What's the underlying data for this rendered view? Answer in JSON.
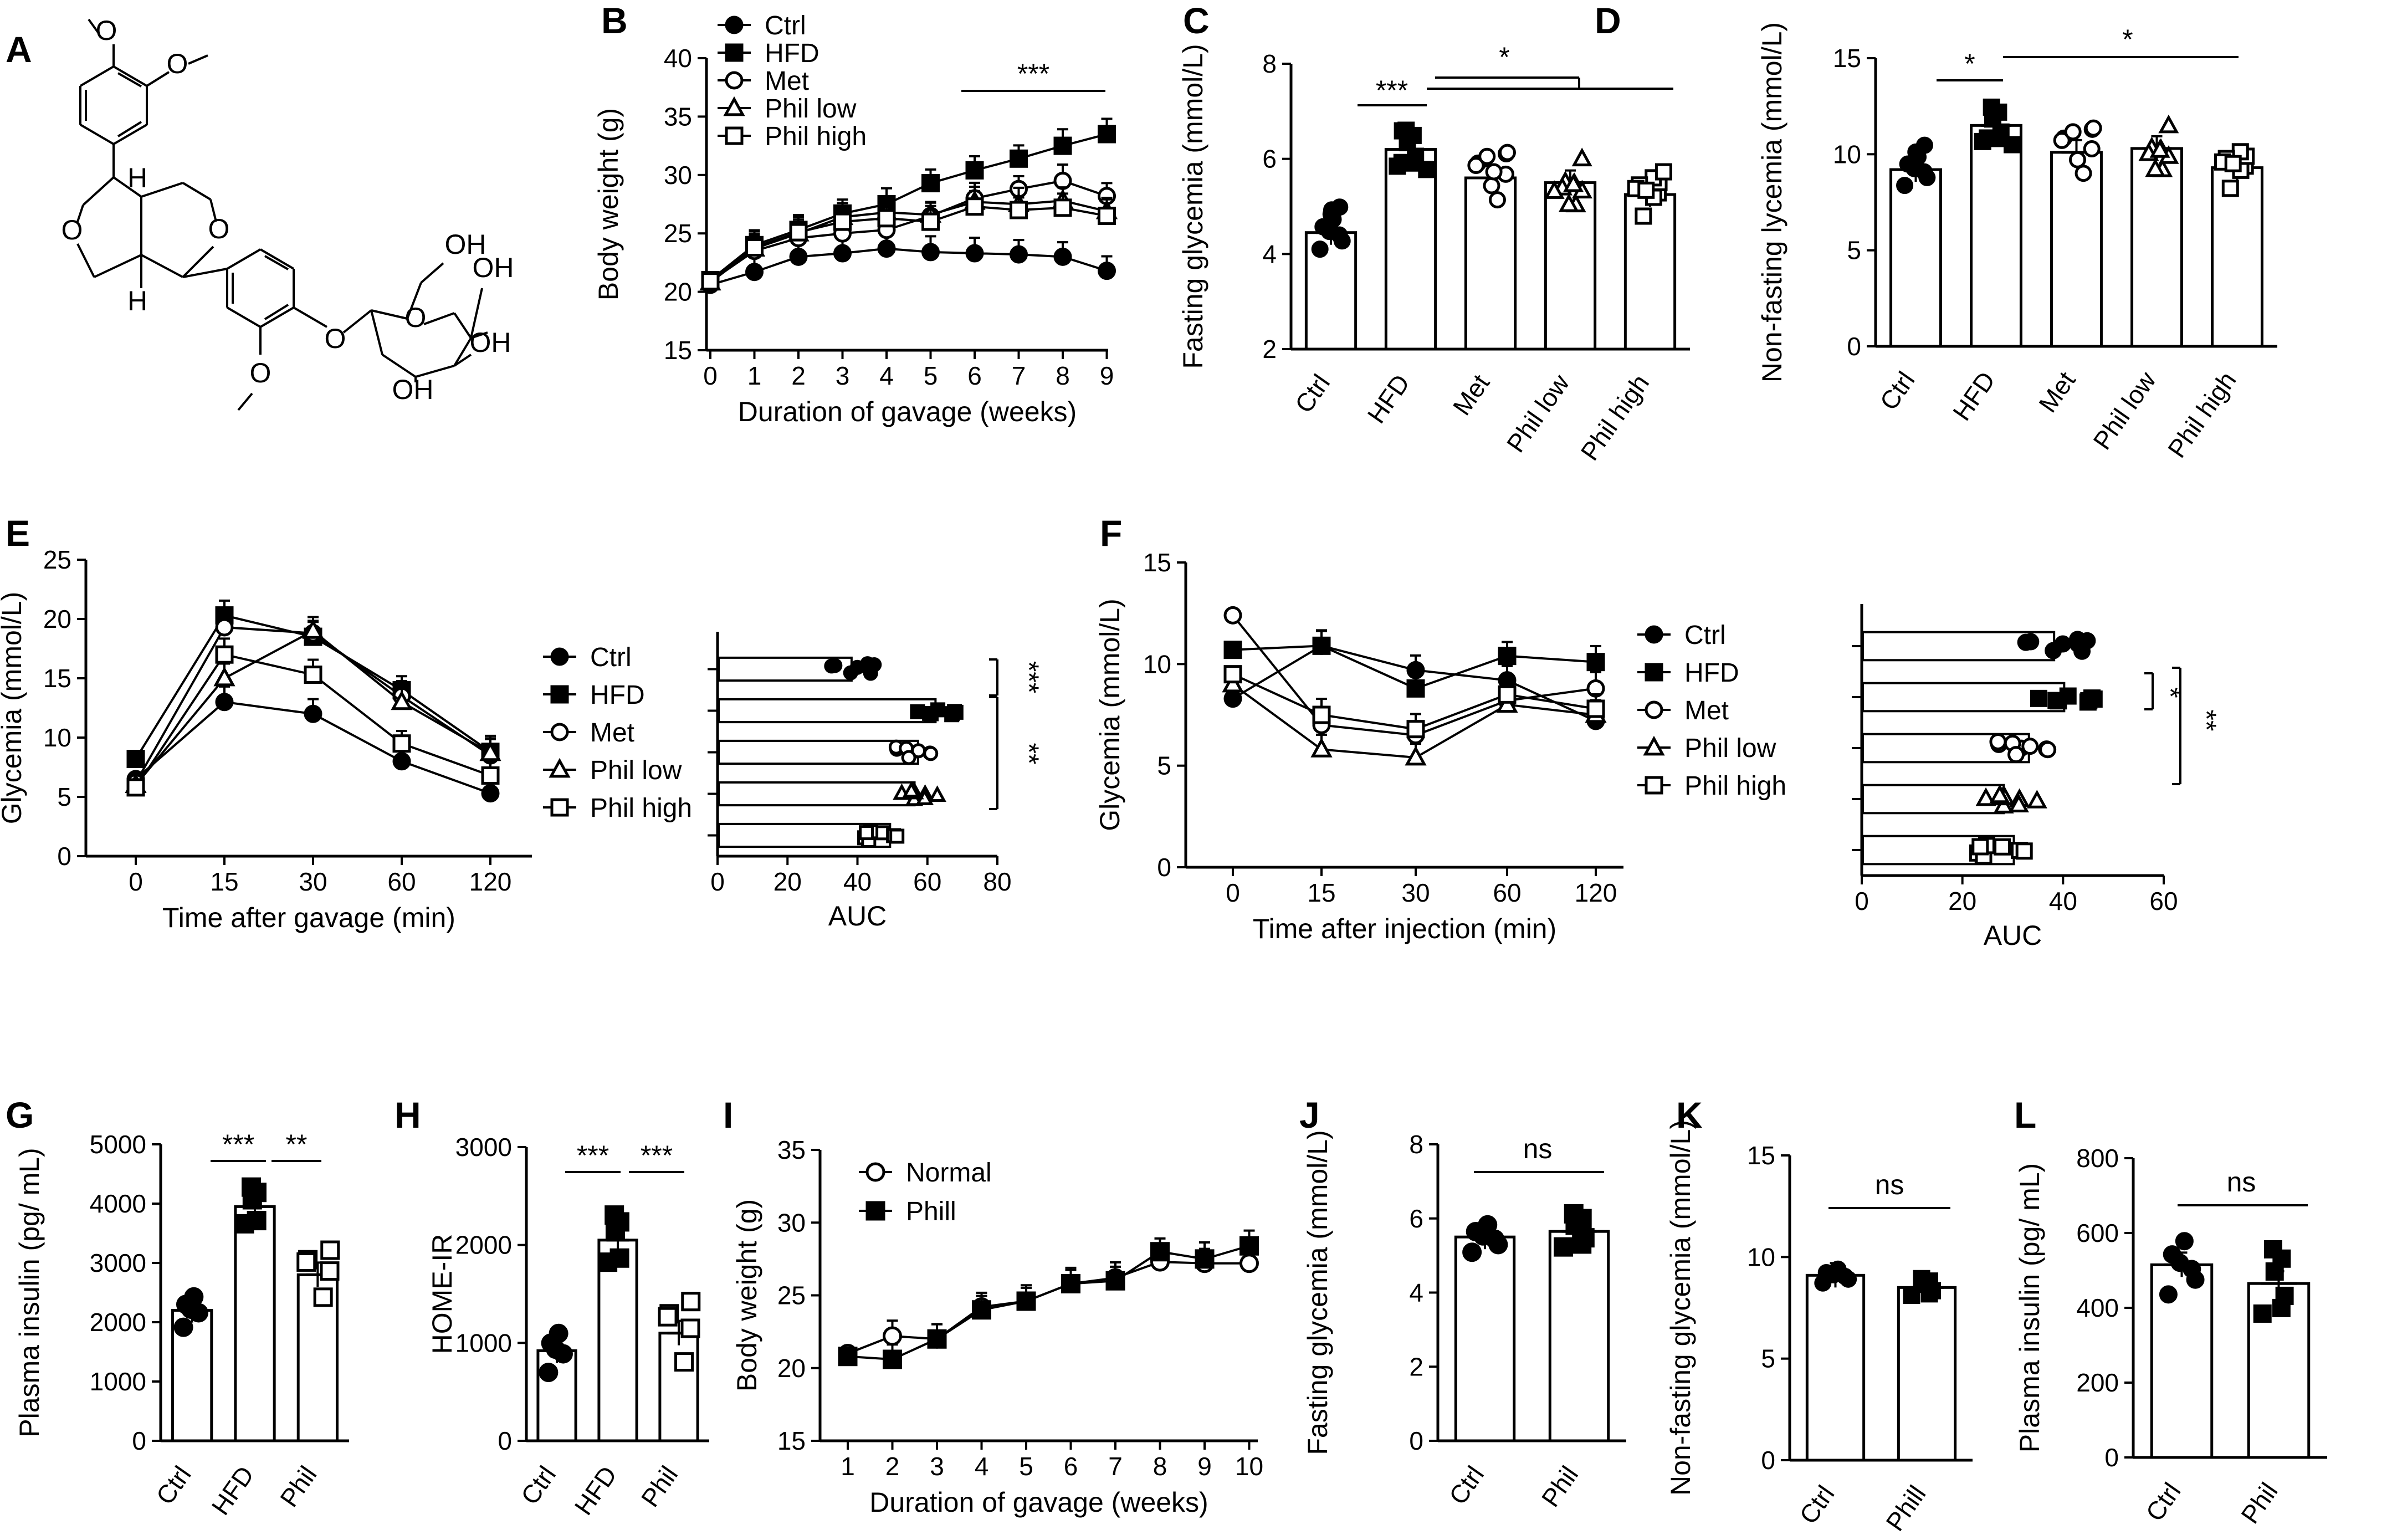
{
  "panel_labels": [
    "A",
    "B",
    "C",
    "D",
    "E",
    "F",
    "G",
    "H",
    "I",
    "J",
    "K",
    "L"
  ],
  "structure": {
    "labels": [
      "H",
      "H",
      "O",
      "O",
      "O",
      "O",
      "O",
      "OH",
      "OH",
      "OH",
      "OH"
    ]
  },
  "chart_data": [
    {
      "id": "B",
      "type": "line",
      "title": "",
      "xlabel": "Duration of gavage (weeks)",
      "ylabel": "Body weight (g)",
      "x": [
        0,
        1,
        2,
        3,
        4,
        5,
        6,
        7,
        8,
        9
      ],
      "xlim": [
        0,
        9
      ],
      "ylim": [
        15,
        40
      ],
      "yticks": [
        15,
        20,
        25,
        30,
        35,
        40
      ],
      "series": [
        {
          "name": "Ctrl",
          "marker": "circle-filled",
          "values": [
            20.6,
            21.7,
            23.0,
            23.3,
            23.7,
            23.4,
            23.3,
            23.2,
            23.0,
            21.8
          ]
        },
        {
          "name": "HFD",
          "marker": "square-filled",
          "values": [
            21.0,
            24.0,
            25.3,
            26.7,
            27.5,
            29.3,
            30.4,
            31.4,
            32.5,
            33.5
          ]
        },
        {
          "name": "Met",
          "marker": "circle-open",
          "values": [
            20.9,
            23.5,
            24.6,
            25.0,
            25.3,
            26.5,
            28.0,
            28.8,
            29.5,
            28.2
          ]
        },
        {
          "name": "Phil low",
          "marker": "triangle-open",
          "values": [
            20.8,
            23.7,
            25.0,
            26.4,
            26.8,
            26.6,
            27.7,
            27.5,
            27.8,
            26.9
          ]
        },
        {
          "name": "Phil high",
          "marker": "square-open",
          "values": [
            20.9,
            23.8,
            25.1,
            26.0,
            26.3,
            26.0,
            27.3,
            27.0,
            27.2,
            26.5
          ]
        }
      ],
      "annotation": "***"
    },
    {
      "id": "C",
      "type": "bar",
      "xlabel": "",
      "ylabel": "Fasting glycemia (mmol/L)",
      "categories": [
        "Ctrl",
        "HFD",
        "Met",
        "Phil low",
        "Phil high"
      ],
      "values": [
        4.45,
        6.2,
        5.6,
        5.5,
        5.25
      ],
      "ylim": [
        2,
        8
      ],
      "yticks": [
        2,
        4,
        6,
        8
      ],
      "annotations": [
        "***",
        "*"
      ]
    },
    {
      "id": "D",
      "type": "bar",
      "xlabel": "",
      "ylabel": "Non-fasting lycemia (mmol/L)",
      "categories": [
        "Ctrl",
        "HFD",
        "Met",
        "Phil low",
        "Phil high"
      ],
      "values": [
        9.2,
        11.5,
        10.1,
        10.3,
        9.3
      ],
      "ylim": [
        0,
        15
      ],
      "yticks": [
        0,
        5,
        10,
        15
      ],
      "annotations": [
        "*",
        "*"
      ]
    },
    {
      "id": "E",
      "type": "line",
      "xlabel": "Time after gavage (min)",
      "ylabel": "Glycemia (mmol/L)",
      "categories": [
        "0",
        "15",
        "30",
        "60",
        "120"
      ],
      "ylim": [
        0,
        25
      ],
      "yticks": [
        0,
        5,
        10,
        15,
        20,
        25
      ],
      "series": [
        {
          "name": "Ctrl",
          "marker": "circle-filled",
          "values": [
            6.5,
            13.0,
            12.0,
            8.0,
            5.3
          ]
        },
        {
          "name": "HFD",
          "marker": "square-filled",
          "values": [
            8.2,
            20.3,
            18.5,
            14.0,
            8.8
          ]
        },
        {
          "name": "Met",
          "marker": "circle-open",
          "values": [
            6.2,
            19.3,
            18.8,
            13.5,
            8.5
          ]
        },
        {
          "name": "Phil low",
          "marker": "triangle-open",
          "values": [
            6.0,
            15.0,
            19.0,
            13.0,
            8.7
          ]
        },
        {
          "name": "Phil high",
          "marker": "square-open",
          "values": [
            5.8,
            17.0,
            15.3,
            9.5,
            6.8
          ]
        }
      ]
    },
    {
      "id": "E-AUC",
      "type": "bar",
      "orientation": "horizontal",
      "xlabel": "AUC",
      "categories": [
        "Ctrl",
        "HFD",
        "Met",
        "Phil low",
        "Phil high"
      ],
      "values": [
        38,
        62,
        57,
        56,
        49
      ],
      "xlim": [
        0,
        80
      ],
      "xticks": [
        0,
        20,
        40,
        60,
        80
      ],
      "annotations": [
        "***",
        "**"
      ]
    },
    {
      "id": "F",
      "type": "line",
      "xlabel": "Time after injection (min)",
      "ylabel": "Glycemia (mmol/L)",
      "categories": [
        "0",
        "15",
        "30",
        "60",
        "120"
      ],
      "ylim": [
        0,
        15
      ],
      "yticks": [
        0,
        5,
        10,
        15
      ],
      "series": [
        {
          "name": "Ctrl",
          "marker": "circle-filled",
          "values": [
            8.3,
            10.9,
            9.7,
            9.2,
            7.2
          ]
        },
        {
          "name": "HFD",
          "marker": "square-filled",
          "values": [
            10.7,
            10.9,
            8.8,
            10.4,
            10.1
          ]
        },
        {
          "name": "Met",
          "marker": "circle-open",
          "values": [
            12.4,
            7.0,
            6.5,
            8.2,
            8.8
          ]
        },
        {
          "name": "Phil low",
          "marker": "triangle-open",
          "values": [
            9.0,
            5.8,
            5.4,
            8.0,
            7.5
          ]
        },
        {
          "name": "Phil high",
          "marker": "square-open",
          "values": [
            9.5,
            7.5,
            6.8,
            8.5,
            7.8
          ]
        }
      ]
    },
    {
      "id": "F-AUC",
      "type": "bar",
      "orientation": "horizontal",
      "xlabel": "AUC",
      "categories": [
        "Ctrl",
        "HFD",
        "Met",
        "Phil low",
        "Phil high"
      ],
      "values": [
        38,
        40,
        33,
        28,
        30
      ],
      "xlim": [
        0,
        60
      ],
      "xticks": [
        0,
        20,
        40,
        60
      ],
      "annotations": [
        "*",
        "**"
      ]
    },
    {
      "id": "G",
      "type": "bar",
      "xlabel": "",
      "ylabel": "Plasma insulin (pg/ mL)",
      "categories": [
        "Ctrl",
        "HFD",
        "Phil"
      ],
      "values": [
        2200,
        3950,
        2800
      ],
      "ylim": [
        0,
        5000
      ],
      "yticks": [
        0,
        1000,
        2000,
        3000,
        4000,
        5000
      ],
      "annotations": [
        "***",
        "**"
      ]
    },
    {
      "id": "H",
      "type": "bar",
      "xlabel": "",
      "ylabel": "HOME-IR",
      "categories": [
        "Ctrl",
        "HFD",
        "Phil"
      ],
      "values": [
        920,
        2050,
        1100
      ],
      "ylim": [
        0,
        3000
      ],
      "yticks": [
        0,
        1000,
        2000,
        3000
      ],
      "annotations": [
        "***",
        "***"
      ]
    },
    {
      "id": "I",
      "type": "line",
      "xlabel": "Duration of gavage (weeks)",
      "ylabel": "Body weight (g)",
      "x": [
        1,
        2,
        3,
        4,
        5,
        6,
        7,
        8,
        9,
        10
      ],
      "xlim": [
        1,
        10
      ],
      "ylim": [
        15,
        35
      ],
      "yticks": [
        15,
        20,
        25,
        30,
        35
      ],
      "series": [
        {
          "name": "Normal",
          "marker": "circle-open",
          "values": [
            21.0,
            22.2,
            22.0,
            24.2,
            24.6,
            25.8,
            26.2,
            27.3,
            27.2,
            27.2
          ]
        },
        {
          "name": "Phill",
          "marker": "square-filled",
          "values": [
            20.8,
            20.6,
            22.0,
            24.0,
            24.6,
            25.8,
            26.0,
            28.0,
            27.5,
            28.4
          ]
        }
      ]
    },
    {
      "id": "J",
      "type": "bar",
      "xlabel": "",
      "ylabel": "Fasting glycemia (mmol/L)",
      "categories": [
        "Ctrl",
        "Phil"
      ],
      "values": [
        5.5,
        5.65
      ],
      "ylim": [
        0,
        8
      ],
      "yticks": [
        0,
        2,
        4,
        6,
        8
      ],
      "annotations": [
        "ns"
      ]
    },
    {
      "id": "K",
      "type": "bar",
      "xlabel": "",
      "ylabel": "Non-fasting glycemia (mmol/L)",
      "categories": [
        "Ctrl",
        "Phill"
      ],
      "values": [
        9.1,
        8.5
      ],
      "ylim": [
        0,
        15
      ],
      "yticks": [
        0,
        5,
        10,
        15
      ],
      "annotations": [
        "ns"
      ]
    },
    {
      "id": "L",
      "type": "bar",
      "xlabel": "",
      "ylabel": "Plasma insulin (pg/ mL)",
      "categories": [
        "Ctrl",
        "Phil"
      ],
      "values": [
        515,
        465
      ],
      "ylim": [
        0,
        800
      ],
      "yticks": [
        0,
        200,
        400,
        600,
        800
      ],
      "annotations": [
        "ns"
      ]
    }
  ]
}
